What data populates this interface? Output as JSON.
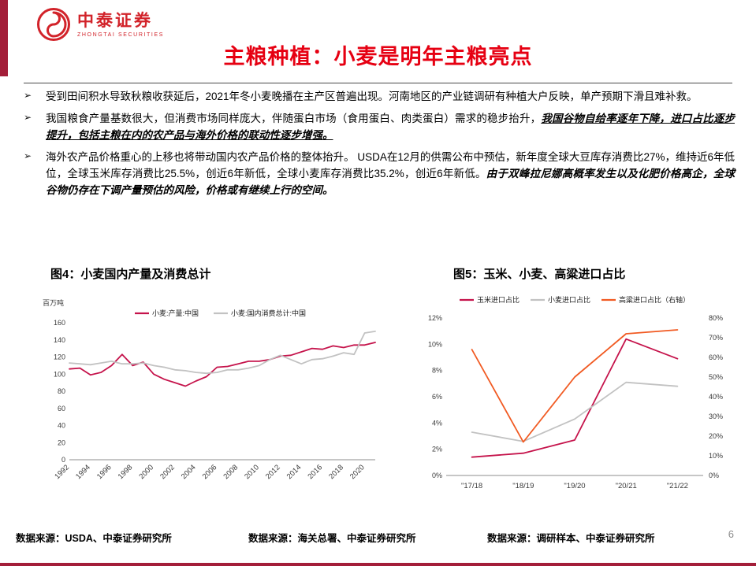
{
  "page": {
    "title": "主粮种植：小麦是明年主粮亮点",
    "page_number": "6",
    "bullet_marker": "➢",
    "colors": {
      "accent_dark_red": "#a31e39",
      "logo_red": "#d2232a",
      "title_red": "#e60012",
      "series_crimson": "#c5134b",
      "series_gray": "#c2c2c2",
      "series_orange": "#f15a22"
    }
  },
  "logo": {
    "brand_cn": "中泰证券",
    "brand_en": "ZHONGTAI SECURITIES"
  },
  "bullets": [
    {
      "segments": [
        {
          "style": "normal",
          "text": "受到田间积水导致秋粮收获延后，2021年冬小麦晚播在主产区普遍出现。河南地区的产业链调研有种植大户反映，单产预期下滑且难补救。"
        }
      ]
    },
    {
      "segments": [
        {
          "style": "normal",
          "text": "我国粮食产量基数很大，但消费市场同样庞大，伴随蛋白市场（食用蛋白、肉类蛋白）需求的稳步抬升，"
        },
        {
          "style": "em",
          "text": "我国谷物自给率逐年下降，进口占比逐步提升，包括主粮在内的农产品与海外价格的联动性逐步增强。"
        }
      ]
    },
    {
      "segments": [
        {
          "style": "normal",
          "text": "海外农产品价格重心的上移也将带动国内农产品价格的整体抬升。 USDA在12月的供需公布中预估，新年度全球大豆库存消费比27%，维持近6年低位，全球玉米库存消费比25.5%，创近6年新低，全球小麦库存消费比35.2%，创近6年新低。"
        },
        {
          "style": "strong",
          "text": "由于双峰拉尼娜高概率发生以及化肥价格高企，全球谷物仍存在下调产量预估的风险，价格或有继续上行的空间。"
        }
      ]
    }
  ],
  "footers": [
    "数据来源：USDA、中泰证券研究所",
    "数据来源：海关总署、中泰证券研究所",
    "数据来源：调研样本、中泰证券研究所"
  ],
  "chart_data": [
    {
      "type": "line",
      "title": "图4：小麦国内产量及消费总计",
      "ylabel": "百万吨",
      "ylim": [
        0,
        160
      ],
      "yticks": [
        0,
        20,
        40,
        60,
        80,
        100,
        120,
        140,
        160
      ],
      "ytick_suffix": "",
      "grid": false,
      "legend_position": "top-center",
      "x": [
        1992,
        1993,
        1994,
        1995,
        1996,
        1997,
        1998,
        1999,
        2000,
        2001,
        2002,
        2003,
        2004,
        2005,
        2006,
        2007,
        2008,
        2009,
        2010,
        2011,
        2012,
        2013,
        2014,
        2015,
        2016,
        2017,
        2018,
        2019,
        2020,
        2021
      ],
      "xticks": [
        1992,
        1994,
        1996,
        1998,
        2000,
        2002,
        2004,
        2006,
        2008,
        2010,
        2012,
        2014,
        2016,
        2018,
        2020
      ],
      "series": [
        {
          "name": "小麦:产量:中国",
          "color": "#c5134b",
          "axis": "left",
          "values": [
            106,
            107,
            99,
            102,
            110,
            123,
            110,
            114,
            100,
            94,
            90,
            86,
            92,
            97,
            108,
            109,
            112,
            115,
            115,
            117,
            121,
            122,
            126,
            130,
            129,
            133,
            131,
            134,
            134,
            137
          ]
        },
        {
          "name": "小麦:国内消费总计:中国",
          "color": "#c2c2c2",
          "axis": "left",
          "values": [
            113,
            112,
            111,
            113,
            115,
            112,
            112,
            113,
            110,
            108,
            105,
            104,
            102,
            101,
            102,
            105,
            105,
            107,
            110,
            117,
            122,
            117,
            112,
            117,
            118,
            121,
            125,
            123,
            148,
            150
          ]
        }
      ]
    },
    {
      "type": "line",
      "title": "图5：玉米、小麦、高粱进口占比",
      "ylim": [
        0,
        12
      ],
      "yticks": [
        0,
        2,
        4,
        6,
        8,
        10,
        12
      ],
      "ytick_suffix": "%",
      "y2lim": [
        0,
        80
      ],
      "y2ticks": [
        0,
        10,
        20,
        30,
        40,
        50,
        60,
        70,
        80
      ],
      "y2tick_suffix": "%",
      "grid": false,
      "legend_position": "top",
      "categories": [
        "\"17/18",
        "\"18/19",
        "\"19/20",
        "\"20/21",
        "\"21/22"
      ],
      "series": [
        {
          "name": "玉米进口占比",
          "color": "#c5134b",
          "axis": "left",
          "values": [
            1.4,
            1.7,
            2.7,
            10.4,
            8.9
          ]
        },
        {
          "name": "小麦进口占比",
          "color": "#c2c2c2",
          "axis": "left",
          "values": [
            3.3,
            2.6,
            4.3,
            7.1,
            6.8
          ]
        },
        {
          "name": "高粱进口占比（右轴）",
          "color": "#f15a22",
          "axis": "right",
          "values": [
            64,
            17,
            50,
            72,
            74
          ]
        }
      ]
    }
  ]
}
